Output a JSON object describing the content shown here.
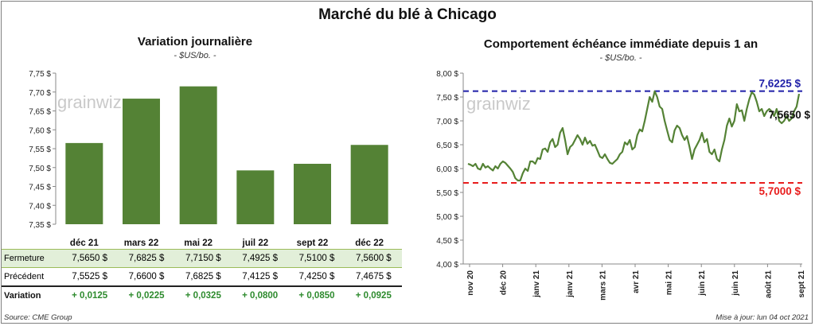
{
  "title": "Marché du blé à Chicago",
  "left_panel": {
    "title": "Variation journalière",
    "unit": "- $US/bo. -",
    "watermark": "grainwiz",
    "table": {
      "rows": [
        {
          "label": "Fermeture",
          "values": [
            "7,5650 $",
            "7,6825 $",
            "7,7150 $",
            "7,4925 $",
            "7,5100 $",
            "7,5600 $"
          ]
        },
        {
          "label": "Précédent",
          "values": [
            "7,5525 $",
            "7,6600 $",
            "7,6825 $",
            "7,4125 $",
            "7,4250 $",
            "7,4675 $"
          ]
        },
        {
          "label": "Variation",
          "values": [
            "+ 0,0125",
            "+ 0,0225",
            "+ 0,0325",
            "+ 0,0800",
            "+ 0,0850",
            "+ 0,0925"
          ]
        }
      ]
    }
  },
  "right_panel": {
    "title": "Comportement échéance immédiate depuis 1 an",
    "unit": "- $US/bo. -",
    "watermark": "grainwiz",
    "annotations": {
      "max": "7,6225 $",
      "last": "7,5650 $",
      "min": "5,7000 $"
    }
  },
  "footer": {
    "source": "Source: CME Group",
    "updated": "Mise à jour: lun 04 oct 2021"
  },
  "colors": {
    "bar": "#548235",
    "line": "#548235",
    "max_line": "#1f1fa8",
    "min_line": "#e81c1c",
    "positive": "#2e8b2e"
  },
  "chart_data": [
    {
      "type": "bar",
      "categories": [
        "déc 21",
        "mars 22",
        "mai 22",
        "juil 22",
        "sept 22",
        "déc 22"
      ],
      "values": [
        7.565,
        7.6825,
        7.715,
        7.4925,
        7.51,
        7.56
      ],
      "ylim": [
        7.35,
        7.75
      ],
      "yticks": [
        "7,35 $",
        "7,40 $",
        "7,45 $",
        "7,50 $",
        "7,55 $",
        "7,60 $",
        "7,65 $",
        "7,70 $",
        "7,75 $"
      ],
      "grid": false
    },
    {
      "type": "line",
      "x_ticks": [
        "nov 20",
        "déc 20",
        "janv 21",
        "janv 21",
        "mars 21",
        "avr 21",
        "mai 21",
        "juin 21",
        "juin 21",
        "août 21",
        "sept 21"
      ],
      "ylim": [
        4.0,
        8.0
      ],
      "yticks": [
        "4,00 $",
        "4,50 $",
        "5,00 $",
        "5,50 $",
        "6,00 $",
        "6,50 $",
        "7,00 $",
        "7,50 $",
        "8,00 $"
      ],
      "reference_lines": [
        {
          "value": 7.6225,
          "label": "7,6225 $"
        },
        {
          "value": 5.7,
          "label": "5,7000 $"
        }
      ],
      "last_value": 7.565,
      "values": [
        6.1,
        6.08,
        6.05,
        6.1,
        6.0,
        5.98,
        6.1,
        6.02,
        6.05,
        6.0,
        5.96,
        6.05,
        6.0,
        6.1,
        6.15,
        6.12,
        6.06,
        6.0,
        5.93,
        5.8,
        5.75,
        5.75,
        5.9,
        6.0,
        5.95,
        6.15,
        6.15,
        6.1,
        6.22,
        6.2,
        6.4,
        6.42,
        6.35,
        6.55,
        6.62,
        6.45,
        6.5,
        6.75,
        6.85,
        6.6,
        6.3,
        6.45,
        6.5,
        6.6,
        6.7,
        6.62,
        6.5,
        6.65,
        6.52,
        6.58,
        6.48,
        6.5,
        6.38,
        6.25,
        6.22,
        6.3,
        6.2,
        6.12,
        6.1,
        6.15,
        6.2,
        6.3,
        6.35,
        6.55,
        6.5,
        6.6,
        6.4,
        6.45,
        6.7,
        6.82,
        6.78,
        7.0,
        7.25,
        7.5,
        7.4,
        7.62,
        7.5,
        7.3,
        7.25,
        7.0,
        6.8,
        6.6,
        6.55,
        6.8,
        6.9,
        6.85,
        6.7,
        6.6,
        6.68,
        6.45,
        6.2,
        6.4,
        6.5,
        6.6,
        6.75,
        6.55,
        6.62,
        6.35,
        6.3,
        6.4,
        6.2,
        6.15,
        6.4,
        6.6,
        6.9,
        7.05,
        6.88,
        7.0,
        7.35,
        7.2,
        7.22,
        7.0,
        7.25,
        7.45,
        7.6,
        7.55,
        7.4,
        7.2,
        7.25,
        7.1,
        7.2,
        7.25,
        7.2,
        7.1,
        7.25,
        7.0,
        6.95,
        7.0,
        7.1,
        7.0,
        7.05,
        7.2,
        7.3,
        7.565
      ]
    }
  ]
}
